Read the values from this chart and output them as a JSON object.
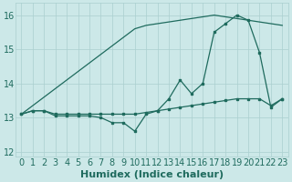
{
  "xlabel": "Humidex (Indice chaleur)",
  "xlim": [
    -0.5,
    23.5
  ],
  "ylim": [
    11.85,
    16.35
  ],
  "yticks": [
    12,
    13,
    14,
    15,
    16
  ],
  "xticks": [
    0,
    1,
    2,
    3,
    4,
    5,
    6,
    7,
    8,
    9,
    10,
    11,
    12,
    13,
    14,
    15,
    16,
    17,
    18,
    19,
    20,
    21,
    22,
    23
  ],
  "background_color": "#cce8e8",
  "grid_color": "#aacfcf",
  "line_color": "#1f6b5e",
  "line_straight": [
    13.1,
    13.35,
    13.6,
    13.85,
    14.1,
    14.35,
    14.6,
    14.85,
    15.1,
    15.35,
    15.6,
    15.7,
    15.75,
    15.8,
    15.85,
    15.9,
    15.95,
    16.0,
    15.95,
    15.9,
    15.85,
    15.8,
    15.75,
    15.7
  ],
  "line_wavy": [
    13.1,
    13.2,
    13.2,
    13.05,
    13.05,
    13.05,
    13.05,
    13.0,
    12.85,
    12.85,
    12.6,
    13.1,
    13.2,
    13.55,
    14.1,
    13.7,
    14.0,
    15.5,
    15.75,
    16.0,
    15.85,
    14.9,
    13.3,
    13.55
  ],
  "line_flat": [
    13.1,
    13.2,
    13.2,
    13.1,
    13.1,
    13.1,
    13.1,
    13.1,
    13.1,
    13.1,
    13.1,
    13.15,
    13.2,
    13.25,
    13.3,
    13.35,
    13.4,
    13.45,
    13.5,
    13.55,
    13.55,
    13.55,
    13.35,
    13.55
  ],
  "xlabel_fontsize": 8,
  "tick_fontsize": 7
}
